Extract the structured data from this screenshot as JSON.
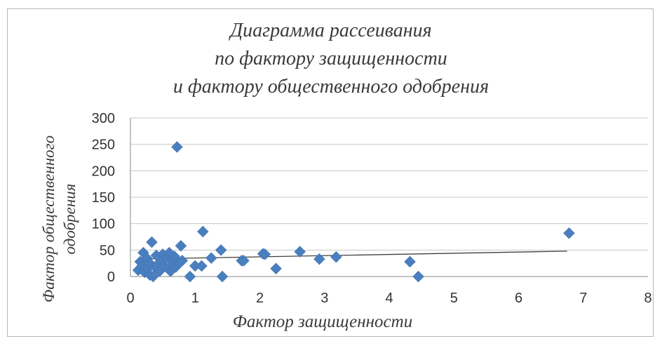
{
  "chart_data": {
    "type": "scatter",
    "title_lines": [
      "Диаграмма рассеивания",
      "по фактору  защищенности",
      "и фактору общественного одобрения"
    ],
    "xlabel": "Фактор защищенности",
    "ylabel_lines": [
      "Фактор общественного",
      "одобрения"
    ],
    "xlim": [
      0,
      8
    ],
    "ylim": [
      0,
      300
    ],
    "x_ticks": [
      0,
      1,
      2,
      3,
      4,
      5,
      6,
      7,
      8
    ],
    "y_ticks": [
      0,
      50,
      100,
      150,
      200,
      250,
      300
    ],
    "grid": "horizontal",
    "marker": "diamond",
    "series_color": "#4a7fbf",
    "trendline": {
      "type": "linear",
      "x": [
        0.15,
        6.75
      ],
      "y": [
        33,
        48
      ],
      "color": "#404040"
    },
    "points": [
      {
        "x": 0.12,
        "y": 12
      },
      {
        "x": 0.15,
        "y": 28
      },
      {
        "x": 0.18,
        "y": 20
      },
      {
        "x": 0.2,
        "y": 45
      },
      {
        "x": 0.22,
        "y": 8
      },
      {
        "x": 0.25,
        "y": 35
      },
      {
        "x": 0.27,
        "y": 15
      },
      {
        "x": 0.3,
        "y": 25
      },
      {
        "x": 0.3,
        "y": 3
      },
      {
        "x": 0.33,
        "y": 65
      },
      {
        "x": 0.35,
        "y": 0
      },
      {
        "x": 0.38,
        "y": 18
      },
      {
        "x": 0.4,
        "y": 40
      },
      {
        "x": 0.42,
        "y": 22
      },
      {
        "x": 0.45,
        "y": 10
      },
      {
        "x": 0.48,
        "y": 30
      },
      {
        "x": 0.5,
        "y": 42
      },
      {
        "x": 0.52,
        "y": 20
      },
      {
        "x": 0.55,
        "y": 35
      },
      {
        "x": 0.58,
        "y": 15
      },
      {
        "x": 0.6,
        "y": 45
      },
      {
        "x": 0.62,
        "y": 10
      },
      {
        "x": 0.65,
        "y": 28
      },
      {
        "x": 0.68,
        "y": 38
      },
      {
        "x": 0.7,
        "y": 18
      },
      {
        "x": 0.72,
        "y": 245
      },
      {
        "x": 0.75,
        "y": 25
      },
      {
        "x": 0.78,
        "y": 58
      },
      {
        "x": 0.8,
        "y": 30
      },
      {
        "x": 0.92,
        "y": 0
      },
      {
        "x": 1.0,
        "y": 20
      },
      {
        "x": 1.1,
        "y": 20
      },
      {
        "x": 1.12,
        "y": 85
      },
      {
        "x": 1.25,
        "y": 35
      },
      {
        "x": 1.4,
        "y": 50
      },
      {
        "x": 1.42,
        "y": 0
      },
      {
        "x": 1.72,
        "y": 30
      },
      {
        "x": 1.75,
        "y": 30
      },
      {
        "x": 2.05,
        "y": 43
      },
      {
        "x": 2.08,
        "y": 42
      },
      {
        "x": 2.25,
        "y": 15
      },
      {
        "x": 2.62,
        "y": 47
      },
      {
        "x": 2.92,
        "y": 33
      },
      {
        "x": 3.18,
        "y": 37
      },
      {
        "x": 4.32,
        "y": 28
      },
      {
        "x": 4.45,
        "y": 0
      },
      {
        "x": 6.78,
        "y": 82
      }
    ]
  }
}
